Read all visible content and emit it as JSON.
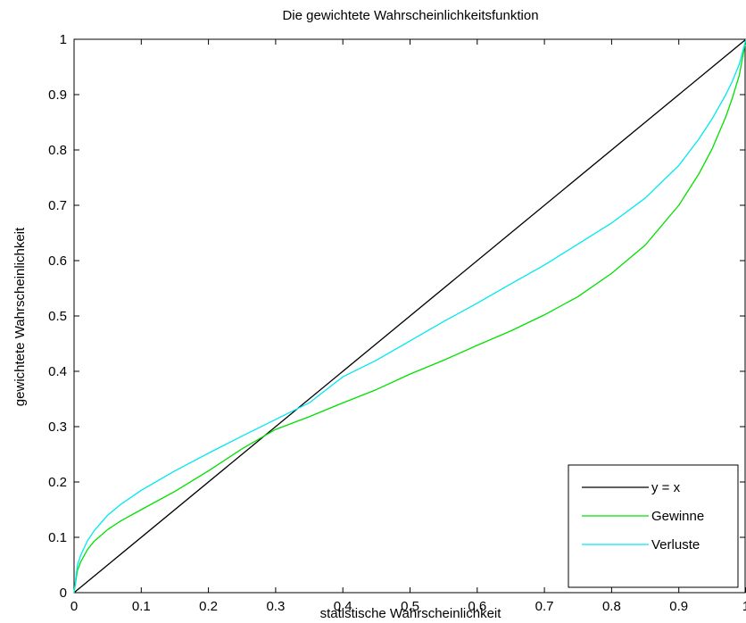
{
  "chart_data": {
    "type": "line",
    "title": "Die gewichtete Wahrscheinlichkeitsfunktion",
    "xlabel": "statistische Wahrscheinlichkeit",
    "ylabel": "gewichtete Wahrscheinlichkeit",
    "xlim": [
      0,
      1
    ],
    "ylim": [
      0,
      1
    ],
    "xticks": [
      0,
      0.1,
      0.2,
      0.3,
      0.4,
      0.5,
      0.6,
      0.7,
      0.8,
      0.9,
      1
    ],
    "yticks": [
      0,
      0.1,
      0.2,
      0.3,
      0.4,
      0.5,
      0.6,
      0.7,
      0.8,
      0.9,
      1
    ],
    "xtick_labels": [
      "0",
      "0.1",
      "0.2",
      "0.3",
      "0.4",
      "0.5",
      "0.6",
      "0.7",
      "0.8",
      "0.9",
      "1"
    ],
    "ytick_labels": [
      "0",
      "0.1",
      "0.2",
      "0.3",
      "0.4",
      "0.5",
      "0.6",
      "0.7",
      "0.8",
      "0.9",
      "1"
    ],
    "grid": false,
    "legend_position": "bottom-right",
    "series": [
      {
        "name": "y = x",
        "color": "#000000",
        "x": [
          0,
          1
        ],
        "y": [
          0,
          1
        ]
      },
      {
        "name": "Gewinne",
        "color": "#00e000",
        "x": [
          0,
          0.005,
          0.01,
          0.02,
          0.03,
          0.05,
          0.07,
          0.1,
          0.15,
          0.2,
          0.25,
          0.3,
          0.35,
          0.4,
          0.45,
          0.5,
          0.55,
          0.6,
          0.65,
          0.7,
          0.75,
          0.8,
          0.85,
          0.9,
          0.93,
          0.95,
          0.97,
          0.98,
          0.99,
          1
        ],
        "y": [
          0,
          0.04,
          0.056,
          0.078,
          0.093,
          0.114,
          0.13,
          0.15,
          0.183,
          0.22,
          0.26,
          0.295,
          0.318,
          0.343,
          0.367,
          0.395,
          0.42,
          0.447,
          0.473,
          0.502,
          0.535,
          0.577,
          0.628,
          0.7,
          0.757,
          0.803,
          0.86,
          0.895,
          0.935,
          1
        ]
      },
      {
        "name": "Verluste",
        "color": "#00e8f0",
        "x": [
          0,
          0.005,
          0.01,
          0.02,
          0.03,
          0.05,
          0.07,
          0.1,
          0.15,
          0.2,
          0.25,
          0.3,
          0.35,
          0.4,
          0.45,
          0.5,
          0.55,
          0.6,
          0.65,
          0.7,
          0.75,
          0.8,
          0.85,
          0.9,
          0.93,
          0.95,
          0.97,
          0.98,
          0.99,
          1
        ],
        "y": [
          0,
          0.05,
          0.068,
          0.094,
          0.112,
          0.14,
          0.16,
          0.185,
          0.22,
          0.252,
          0.283,
          0.313,
          0.343,
          0.39,
          0.42,
          0.455,
          0.49,
          0.523,
          0.558,
          0.592,
          0.63,
          0.668,
          0.713,
          0.772,
          0.82,
          0.857,
          0.9,
          0.925,
          0.955,
          1
        ]
      }
    ]
  }
}
